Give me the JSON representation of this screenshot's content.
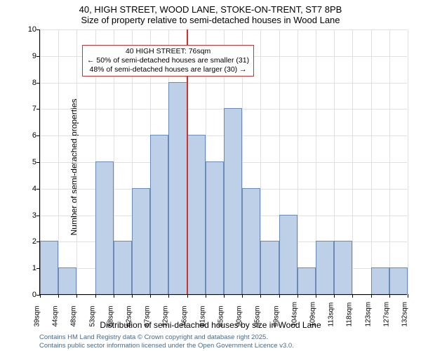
{
  "title1": "40, HIGH STREET, WOOD LANE, STOKE-ON-TRENT, ST7 8PB",
  "title2": "Size of property relative to semi-detached houses in Wood Lane",
  "ylabel": "Number of semi-detached properties",
  "xlabel": "Distribution of semi-detached houses by size in Wood Lane",
  "footnote1": "Contains HM Land Registry data © Crown copyright and database right 2025.",
  "footnote2": "Contains public sector information licensed under the Open Government Licence v3.0.",
  "annot1": "40 HIGH STREET: 76sqm",
  "annot2": "← 50% of semi-detached houses are smaller (31)",
  "annot3": "48% of semi-detached houses are larger (30) →",
  "chart": {
    "type": "histogram",
    "background_color": "#ffffff",
    "grid_color": "#e0e0e0",
    "bar_fill": "#bdd0e7",
    "bar_border": "#6a8bb5",
    "vline_color": "#d03030",
    "annot_border": "#d03030",
    "yticks": [
      0,
      1,
      2,
      3,
      4,
      5,
      6,
      7,
      8,
      9,
      10
    ],
    "ylim": [
      0,
      10
    ],
    "xticks": [
      "39sqm",
      "44sqm",
      "48sqm",
      "53sqm",
      "58sqm",
      "62sqm",
      "67sqm",
      "72sqm",
      "76sqm",
      "81sqm",
      "85sqm",
      "90sqm",
      "95sqm",
      "99sqm",
      "104sqm",
      "109sqm",
      "113sqm",
      "118sqm",
      "123sqm",
      "127sqm",
      "132sqm"
    ],
    "values": [
      2,
      1,
      0,
      5,
      2,
      4,
      6,
      8,
      6,
      5,
      7,
      4,
      2,
      3,
      1,
      2,
      2,
      0,
      1,
      1
    ],
    "vline_at_index": 8,
    "bar_count": 20,
    "title_fontsize": 13,
    "label_fontsize": 12,
    "tick_fontsize": 11
  }
}
